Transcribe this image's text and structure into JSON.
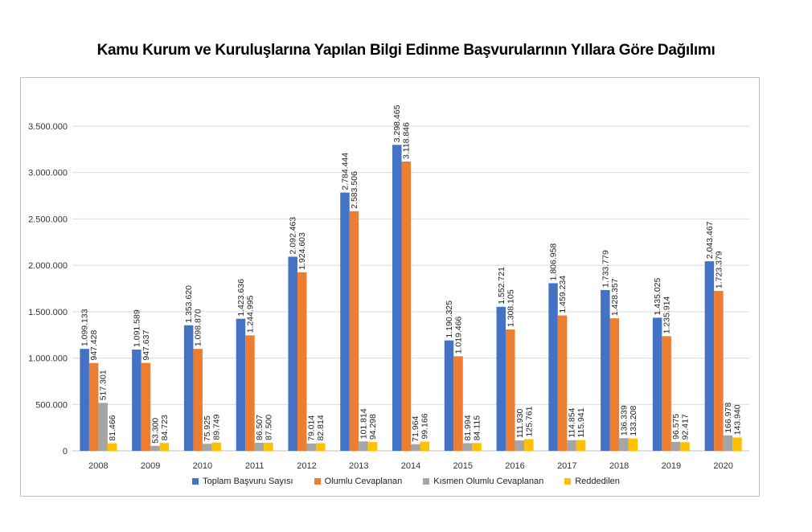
{
  "chart_data": {
    "type": "bar",
    "title": "Kamu Kurum ve Kuruluşlarına Yapılan Bilgi Edinme Başvurularının Yıllara Göre Dağılımı",
    "categories": [
      "2008",
      "2009",
      "2010",
      "2011",
      "2012",
      "2013",
      "2014",
      "2015",
      "2016",
      "2017",
      "2018",
      "2019",
      "2020"
    ],
    "ylim": [
      0,
      3500000
    ],
    "yticks": [
      0,
      500000,
      1000000,
      1500000,
      2000000,
      2500000,
      3000000,
      3500000
    ],
    "ytick_labels": [
      "0",
      "500.000",
      "1.000.000",
      "1.500.000",
      "2.000.000",
      "2.500.000",
      "3.000.000",
      "3.500.000"
    ],
    "grid": true,
    "legend_position": "bottom",
    "series": [
      {
        "name": "Toplam Başvuru Sayısı",
        "color": "#4472C4",
        "values": [
          1099133,
          1091589,
          1353620,
          1423636,
          2092463,
          2784444,
          3298465,
          1190325,
          1552721,
          1806958,
          1733779,
          1435025,
          2043467
        ],
        "labels": [
          "1.099.133",
          "1.091.589",
          "1.353.620",
          "1.423.636",
          "2.092.463",
          "2.784.444",
          "3.298.465",
          "1.190.325",
          "1.552.721",
          "1.806.958",
          "1.733.779",
          "1.435.025",
          "2.043.467"
        ]
      },
      {
        "name": "Olumlu Cevaplanan",
        "color": "#ED7D31",
        "values": [
          947428,
          947637,
          1098870,
          1244995,
          1924603,
          2583506,
          3118846,
          1019466,
          1308105,
          1459234,
          1428357,
          1235914,
          1723379
        ],
        "labels": [
          "947.428",
          "947.637",
          "1.098.870",
          "1.244.995",
          "1.924.603",
          "2.583.506",
          "3.118.846",
          "1.019.466",
          "1.308.105",
          "1.459.234",
          "1.428.357",
          "1.235.914",
          "1.723.379"
        ]
      },
      {
        "name": "Kısmen Olumlu Cevaplanan",
        "color": "#A5A5A5",
        "values": [
          517301,
          53300,
          75925,
          86507,
          79014,
          101814,
          71964,
          81994,
          111930,
          114854,
          136339,
          96575,
          166978
        ],
        "labels": [
          "517.301",
          "53.300",
          "75.925",
          "86.507",
          "79.014",
          "101.814",
          "71.964",
          "81.994",
          "111.930",
          "114.854",
          "136.339",
          "96.575",
          "166.978"
        ]
      },
      {
        "name": "Reddedilen",
        "color": "#FFC000",
        "values": [
          81466,
          84723,
          89749,
          87500,
          82814,
          94298,
          99166,
          84115,
          125761,
          115941,
          133208,
          92417,
          143940
        ],
        "labels": [
          "81.466",
          "84.723",
          "89.749",
          "87.500",
          "82.814",
          "94.298",
          "99.166",
          "84.115",
          "125.761",
          "115.941",
          "133.208",
          "92.417",
          "143.940"
        ]
      }
    ]
  }
}
